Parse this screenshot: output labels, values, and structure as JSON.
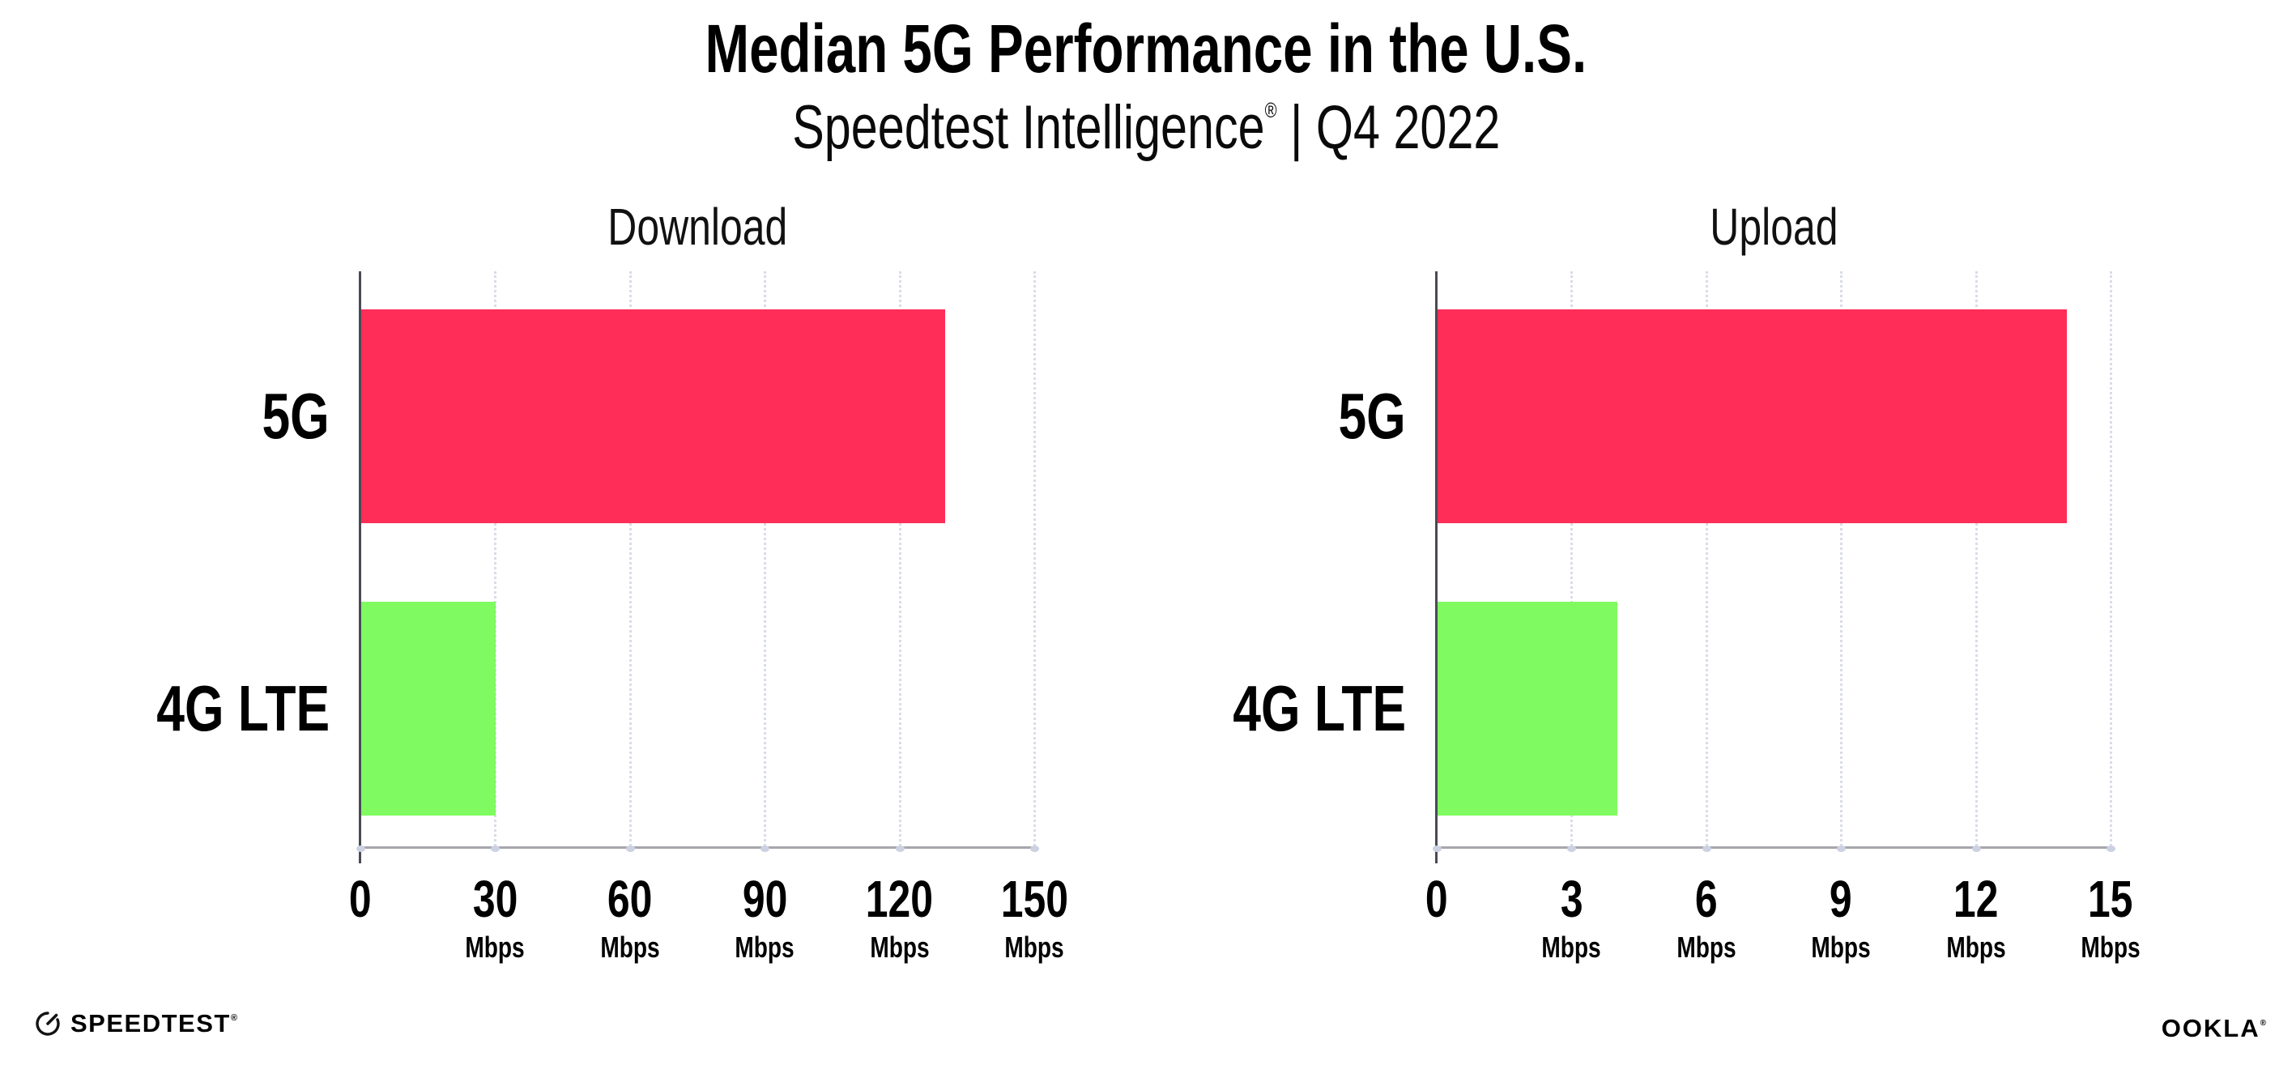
{
  "header": {
    "title": "Median 5G Performance in the U.S.",
    "subtitle_brand": "Speedtest Intelligence",
    "subtitle_registered": "®",
    "subtitle_period": " | Q4 2022"
  },
  "chart_data": [
    {
      "type": "bar",
      "orientation": "horizontal",
      "title": "Download",
      "categories": [
        "5G",
        "4G LTE"
      ],
      "values": [
        130,
        30
      ],
      "unit": "Mbps",
      "xlabel": "",
      "ylabel": "",
      "xlim": [
        0,
        150
      ],
      "xticks": [
        0,
        30,
        60,
        90,
        120,
        150
      ],
      "bar_colors": [
        "#ff2d57",
        "#7ffa60"
      ],
      "grid": "dotted vertical gridlines at each tick",
      "legend": "none"
    },
    {
      "type": "bar",
      "orientation": "horizontal",
      "title": "Upload",
      "categories": [
        "5G",
        "4G LTE"
      ],
      "values": [
        14,
        4
      ],
      "unit": "Mbps",
      "xlabel": "",
      "ylabel": "",
      "xlim": [
        0,
        15
      ],
      "xticks": [
        0,
        3,
        6,
        9,
        12,
        15
      ],
      "bar_colors": [
        "#ff2d57",
        "#7ffa60"
      ],
      "grid": "dotted vertical gridlines at each tick",
      "legend": "none"
    }
  ],
  "style": {
    "bar_5g_color": "#ff2d57",
    "bar_4g_lte_color": "#7ffa60",
    "gridline_color": "#d9dce9",
    "x_axis_color": "#a6a6ac",
    "y_axis_color": "#4a4a55"
  },
  "footer": {
    "speedtest_label": "SPEEDTEST",
    "speedtest_registered": "®",
    "ookla_label": "OOKLA",
    "ookla_registered": "®"
  }
}
